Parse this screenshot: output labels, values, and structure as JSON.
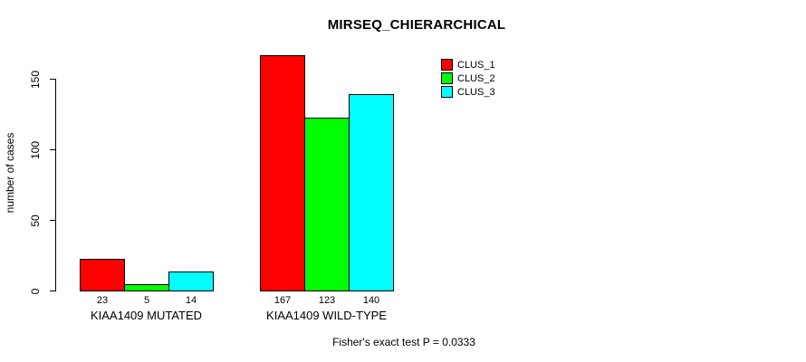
{
  "chart_data": {
    "type": "bar",
    "title": "MIRSEQ_CHIERARCHICAL",
    "xlabel": "",
    "ylabel": "number of cases",
    "categories": [
      "KIAA1409 MUTATED",
      "KIAA1409 WILD-TYPE"
    ],
    "series": [
      {
        "name": "CLUS_1",
        "color": "#ff0000",
        "values": [
          23,
          167
        ]
      },
      {
        "name": "CLUS_2",
        "color": "#00ff00",
        "values": [
          5,
          123
        ]
      },
      {
        "name": "CLUS_3",
        "color": "#00ffff",
        "values": [
          14,
          140
        ]
      }
    ],
    "bar_value_labels": [
      [
        23,
        5,
        14
      ],
      [
        167,
        123,
        140
      ]
    ],
    "yticks": [
      0,
      50,
      100,
      150
    ],
    "ylim": [
      0,
      175
    ],
    "grid": false,
    "legend_position": "top-right-inside",
    "legend_entries": [
      "CLUS_1",
      "CLUS_2",
      "CLUS_3"
    ],
    "footnote": "Fisher's exact test P = 0.0333",
    "bar_border_color": "#000000",
    "axis_color": "#000000",
    "text_color": "#000000",
    "background_color": "#ffffff"
  }
}
